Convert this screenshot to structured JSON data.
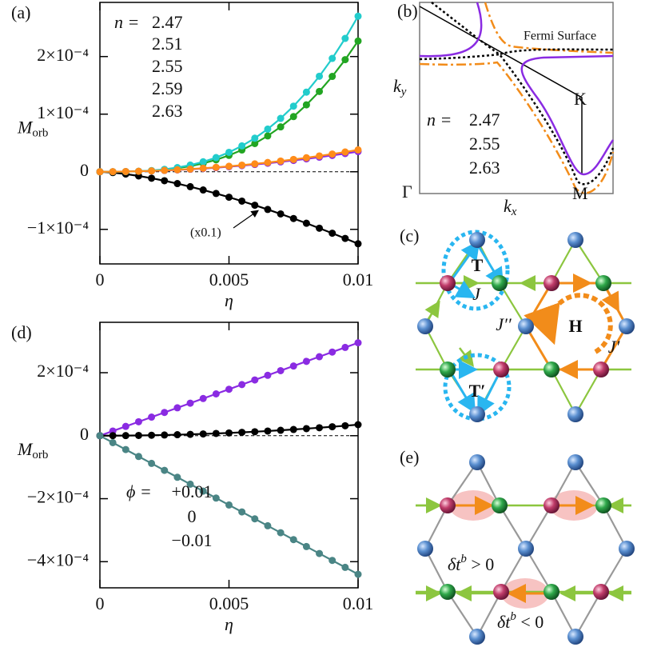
{
  "chart_data": [
    {
      "type": "line",
      "panel_label": "(a)",
      "xlabel": "η",
      "ylabel": [
        "M",
        "orb"
      ],
      "legend_title": "n =",
      "annotation": "(x0.1)",
      "x": [
        0,
        0.0005,
        0.001,
        0.0015,
        0.002,
        0.0025,
        0.003,
        0.0035,
        0.004,
        0.0045,
        0.005,
        0.0055,
        0.006,
        0.0065,
        0.007,
        0.0075,
        0.008,
        0.0085,
        0.009,
        0.0095,
        0.01
      ],
      "xlim": [
        0,
        0.01
      ],
      "xticks": [
        0,
        0.005,
        0.01
      ],
      "ylim": [
        -0.00016,
        0.000294
      ],
      "yticks": [
        {
          "value": -0.0001,
          "label": "−1×10⁻⁴"
        },
        0,
        {
          "value": 0.0001,
          "label": "1×10⁻⁴"
        },
        {
          "value": 0.0002,
          "label": "2×10⁻⁴"
        }
      ],
      "hline": 0,
      "series": [
        {
          "name": "2.47",
          "color": "#8a2be2",
          "values": [
            0,
            9e-08,
            3.5e-07,
            7.9e-07,
            1.4e-06,
            2.2e-06,
            3.15e-06,
            4.3e-06,
            5.6e-06,
            7.1e-06,
            8.75e-06,
            1.06e-05,
            1.26e-05,
            1.48e-05,
            1.715e-05,
            1.97e-05,
            2.24e-05,
            2.53e-05,
            2.835e-05,
            3.16e-05,
            3.5e-05
          ]
        },
        {
          "name": "2.51",
          "color": "#22a522",
          "values": [
            0,
            3e-08,
            2.3e-07,
            7.7e-07,
            1.82e-06,
            3.55e-06,
            6.13e-06,
            9.73e-06,
            1.45e-05,
            2.07e-05,
            2.84e-05,
            3.78e-05,
            4.9e-05,
            6.23e-05,
            7.79e-05,
            9.58e-05,
            0.0001162,
            0.0001394,
            0.0001655,
            0.0001946,
            0.000227
          ]
        },
        {
          "name": "2.55",
          "color": "#000000",
          "values": [
            0,
            -1.4e-06,
            -3.95e-06,
            -7.26e-06,
            -1.12e-05,
            -1.56e-05,
            -2.05e-05,
            -2.59e-05,
            -3.16e-05,
            -3.77e-05,
            -4.42e-05,
            -5.1e-05,
            -5.81e-05,
            -6.55e-05,
            -7.32e-05,
            -8.12e-05,
            -8.94e-05,
            -9.8e-05,
            -0.0001067,
            -0.0001157,
            -0.000125
          ]
        },
        {
          "name": "2.59",
          "color": "#22cccc",
          "values": [
            0,
            3e-08,
            2.7e-07,
            9.1e-07,
            2.16e-06,
            4.2e-06,
            7.3e-06,
            1.16e-05,
            1.73e-05,
            2.46e-05,
            3.375e-05,
            4.49e-05,
            5.83e-05,
            7.41e-05,
            9.26e-05,
            0.0001139,
            0.0001382,
            0.0001658,
            0.0001968,
            0.0002315,
            0.00027
          ]
        },
        {
          "name": "2.63",
          "color": "#ff8c1a",
          "values": [
            0,
            1e-07,
            3.8e-07,
            8.6e-07,
            1.52e-06,
            2.38e-06,
            3.42e-06,
            4.66e-06,
            6.08e-06,
            7.7e-06,
            9.5e-06,
            1.15e-05,
            1.37e-05,
            1.61e-05,
            1.86e-05,
            2.14e-05,
            2.43e-05,
            2.75e-05,
            3.08e-05,
            3.43e-05,
            3.8e-05
          ]
        }
      ]
    },
    {
      "type": "line",
      "panel_label": "(d)",
      "xlabel": "η",
      "ylabel": [
        "M",
        "orb"
      ],
      "legend_title": "ϕ =",
      "x": [
        0,
        0.0005,
        0.001,
        0.0015,
        0.002,
        0.0025,
        0.003,
        0.0035,
        0.004,
        0.0045,
        0.005,
        0.0055,
        0.006,
        0.0065,
        0.007,
        0.0075,
        0.008,
        0.0085,
        0.009,
        0.0095,
        0.01
      ],
      "xlim": [
        0,
        0.01
      ],
      "xticks": [
        0,
        0.005,
        0.01
      ],
      "ylim": [
        -0.000483,
        0.00036
      ],
      "yticks": [
        {
          "value": -0.0004,
          "label": "−4×10⁻⁴"
        },
        {
          "value": -0.0002,
          "label": "−2×10⁻⁴"
        },
        0,
        {
          "value": 0.0002,
          "label": "2×10⁻⁴"
        }
      ],
      "hline": 0,
      "series": [
        {
          "name": "+0.01",
          "color": "#8a2be2",
          "values": [
            0,
            1.475e-05,
            2.95e-05,
            4.425e-05,
            5.9e-05,
            7.375e-05,
            8.85e-05,
            0.00010325,
            0.000118,
            0.00013275,
            0.0001475,
            0.00016225,
            0.000177,
            0.00019175,
            0.0002065,
            0.00022125,
            0.000236,
            0.00025075,
            0.0002655,
            0.00028025,
            0.000295
          ]
        },
        {
          "name": "0",
          "color": "#000000",
          "values": [
            0,
            9e-08,
            3.5e-07,
            7.9e-07,
            1.4e-06,
            2.2e-06,
            3.15e-06,
            4.3e-06,
            5.6e-06,
            7.1e-06,
            8.75e-06,
            1.06e-05,
            1.26e-05,
            1.48e-05,
            1.715e-05,
            1.97e-05,
            2.24e-05,
            2.53e-05,
            2.835e-05,
            3.16e-05,
            3.5e-05
          ]
        },
        {
          "name": "−0.01",
          "color": "#4a8585",
          "values": [
            0,
            -2.2e-05,
            -4.4e-05,
            -6.6e-05,
            -8.8e-05,
            -0.00011,
            -0.000132,
            -0.000154,
            -0.000176,
            -0.000198,
            -0.00022,
            -0.000242,
            -0.000264,
            -0.000286,
            -0.000308,
            -0.00033,
            -0.000352,
            -0.000374,
            -0.000396,
            -0.000418,
            -0.00044
          ]
        }
      ]
    }
  ],
  "diagrams": {
    "b": {
      "panel_label": "(b)",
      "title": "Fermi Surface",
      "K": "K",
      "Gamma": "Γ",
      "M": "M",
      "kx": [
        "k",
        "x"
      ],
      "ky": [
        "k",
        "y"
      ],
      "legend_title": "n =",
      "legend": [
        {
          "name": "2.47",
          "color": "#8a2be2"
        },
        {
          "name": "2.55",
          "color": "#000000"
        },
        {
          "name": "2.63",
          "color": "#ff8c1a"
        }
      ]
    },
    "c": {
      "panel_label": "(c)",
      "T": "T",
      "J": "J",
      "J2": "J′′",
      "H": "H",
      "J1": "J′",
      "T1": "T′"
    },
    "e": {
      "panel_label": "(e)",
      "labels": [
        [
          "δt",
          "b",
          " > 0"
        ],
        [
          "δt",
          "b",
          " < 0"
        ]
      ]
    }
  }
}
